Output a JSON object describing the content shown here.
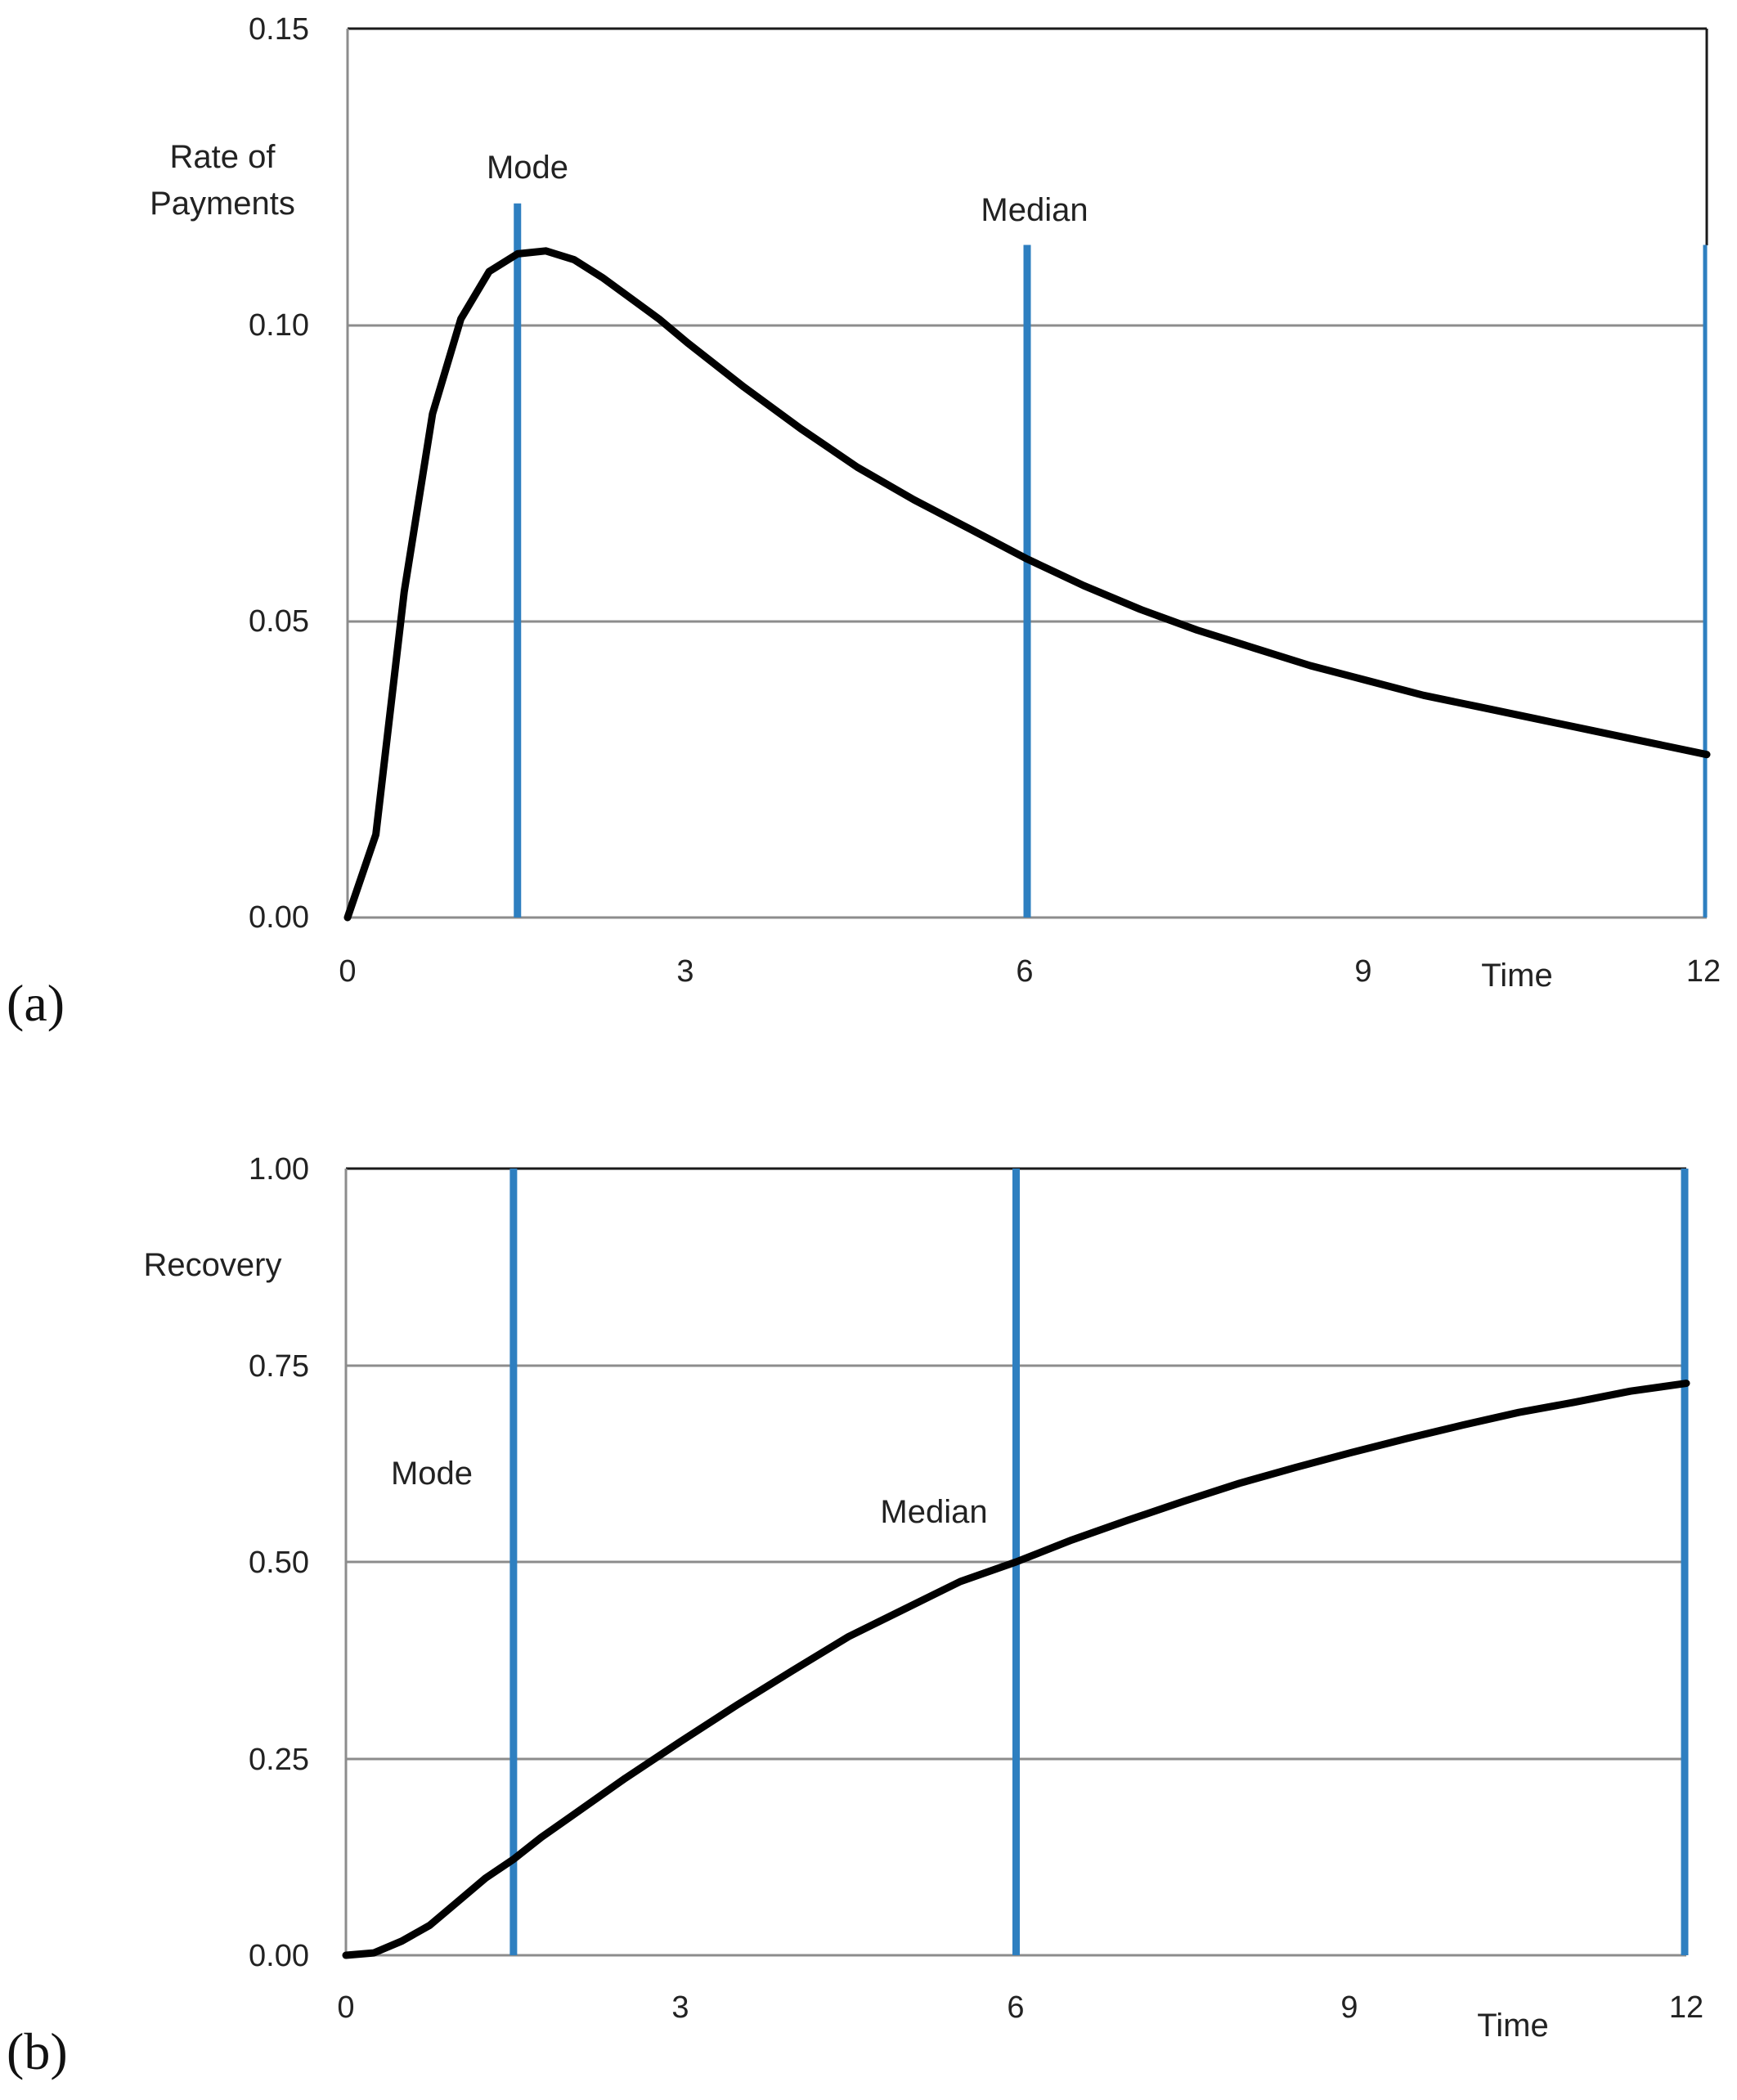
{
  "chart_data": [
    {
      "id": "a",
      "type": "line",
      "panel_label": "(a)",
      "ylabel_lines": [
        "Rate of",
        "Payments"
      ],
      "xlabel": "Time",
      "xlim": [
        0,
        12
      ],
      "ylim": [
        0,
        0.15
      ],
      "x_ticks": [
        0,
        3,
        6,
        9,
        12
      ],
      "x_tick_labels": [
        "0",
        "3",
        "6",
        "9",
        "12"
      ],
      "y_ticks": [
        0,
        0.05,
        0.1,
        0.15
      ],
      "y_tick_labels": [
        "0.00",
        "0.05",
        "0.10",
        "0.15"
      ],
      "grid": true,
      "curve_color": "#000000",
      "marker_color": "#2e7fc0",
      "series": [
        {
          "name": "Rate of Payments",
          "x": [
            0,
            0.25,
            0.5,
            0.75,
            1.0,
            1.25,
            1.5,
            1.75,
            2.0,
            2.25,
            2.5,
            2.75,
            3.0,
            3.5,
            4.0,
            4.5,
            5.0,
            5.5,
            6.0,
            6.5,
            7.0,
            7.5,
            8.0,
            8.5,
            9.0,
            9.5,
            10.0,
            10.5,
            11.0,
            11.5,
            12.0
          ],
          "values": [
            0.0,
            0.014,
            0.055,
            0.085,
            0.101,
            0.109,
            0.112,
            0.1125,
            0.111,
            0.108,
            0.1045,
            0.101,
            0.097,
            0.0895,
            0.0825,
            0.076,
            0.0705,
            0.0655,
            0.0605,
            0.056,
            0.052,
            0.0485,
            0.0455,
            0.0425,
            0.04,
            0.0375,
            0.0355,
            0.0335,
            0.0315,
            0.0295,
            0.0275
          ]
        }
      ],
      "vlines": [
        {
          "label": "Mode",
          "x": 1.5,
          "y_top": 0.1205
        },
        {
          "label": "Median",
          "x": 6.0,
          "y_top": 0.1135
        },
        {
          "label": "",
          "x": 12.0,
          "y_top": 0.1135
        }
      ]
    },
    {
      "id": "b",
      "type": "line",
      "panel_label": "(b)",
      "ylabel_lines": [
        "Recovery"
      ],
      "xlabel": "Time",
      "xlim": [
        0,
        12
      ],
      "ylim": [
        0,
        1.0
      ],
      "x_ticks": [
        0,
        3,
        6,
        9,
        12
      ],
      "x_tick_labels": [
        "0",
        "3",
        "6",
        "9",
        "12"
      ],
      "y_ticks": [
        0,
        0.25,
        0.5,
        0.75,
        1.0
      ],
      "y_tick_labels": [
        "0.00",
        "0.25",
        "0.50",
        "0.75",
        "1.00"
      ],
      "grid": true,
      "curve_color": "#000000",
      "marker_color": "#2e7fc0",
      "series": [
        {
          "name": "Recovery",
          "x": [
            0,
            0.25,
            0.5,
            0.75,
            1.0,
            1.25,
            1.5,
            1.75,
            2.0,
            2.5,
            3.0,
            3.5,
            4.0,
            4.5,
            5.0,
            5.5,
            6.0,
            6.5,
            7.0,
            7.5,
            8.0,
            8.5,
            9.0,
            9.5,
            10.0,
            10.5,
            11.0,
            11.5,
            12.0
          ],
          "values": [
            0.0,
            0.003,
            0.018,
            0.038,
            0.068,
            0.098,
            0.122,
            0.15,
            0.175,
            0.225,
            0.272,
            0.318,
            0.362,
            0.405,
            0.44,
            0.475,
            0.5,
            0.528,
            0.553,
            0.577,
            0.6,
            0.62,
            0.639,
            0.657,
            0.674,
            0.69,
            0.703,
            0.717,
            0.727
          ]
        }
      ],
      "vlines": [
        {
          "label": "Mode",
          "x": 1.5,
          "y_top": 1.0
        },
        {
          "label": "Median",
          "x": 6.0,
          "y_top": 1.0
        },
        {
          "label": "",
          "x": 12.0,
          "y_top": 1.0
        }
      ]
    }
  ]
}
